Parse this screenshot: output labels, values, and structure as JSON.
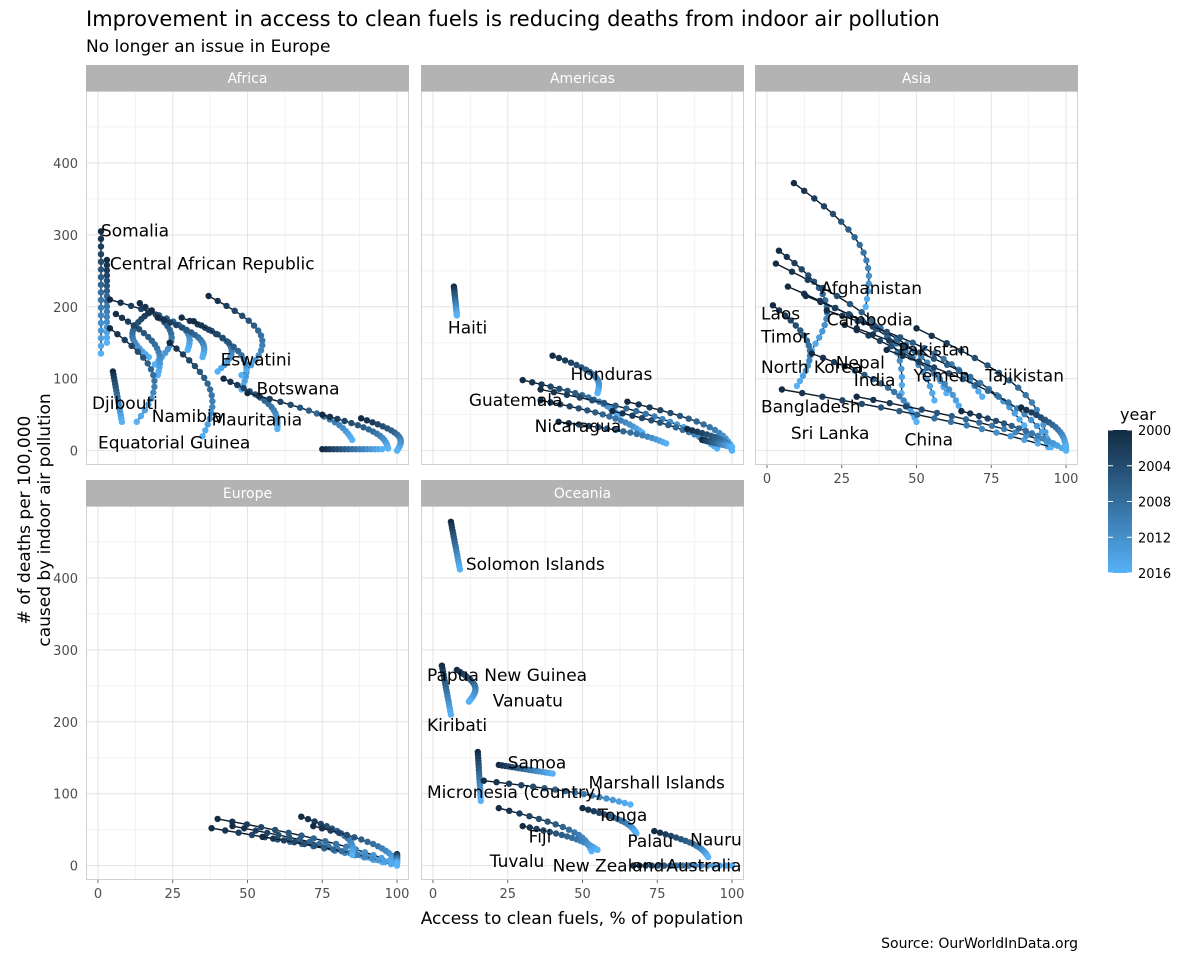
{
  "chart_data": {
    "type": "scatter",
    "title": "Improvement in access to clean fuels is reducing deaths from indoor air pollution",
    "subtitle": "No longer an issue in Europe",
    "xlabel": "Access to clean fuels, % of population",
    "ylabel_line1": "# of deaths per 100,000",
    "ylabel_line2": "caused by indoor air pollution",
    "caption": "Source: OurWorldInData.org",
    "xlim": [
      -4,
      104
    ],
    "ylim": [
      -20,
      500
    ],
    "x_ticks": [
      0,
      25,
      50,
      75,
      100
    ],
    "y_ticks": [
      0,
      100,
      200,
      300,
      400
    ],
    "grid": true,
    "legend": {
      "title": "year",
      "position": "right",
      "labels": [
        "2000",
        "2004",
        "2008",
        "2012",
        "2016"
      ],
      "color_start": "#132B43",
      "color_end": "#56B1F7"
    },
    "year_range": [
      2000,
      2016
    ],
    "facets": [
      {
        "name": "Africa",
        "trajectories": [
          {
            "start": [
              1,
              305
            ],
            "end": [
              1,
              135
            ],
            "bend": 0
          },
          {
            "start": [
              3,
              265
            ],
            "end": [
              3,
              150
            ],
            "bend": 0
          },
          {
            "start": [
              4,
              210
            ],
            "end": [
              30,
              140
            ],
            "bend": 10
          },
          {
            "start": [
              14,
              205
            ],
            "end": [
              19,
              120
            ],
            "bend": 8
          },
          {
            "start": [
              18,
              195
            ],
            "end": [
              17,
              130
            ],
            "bend": -6
          },
          {
            "start": [
              20,
              185
            ],
            "end": [
              35,
              130
            ],
            "bend": 6
          },
          {
            "start": [
              28,
              185
            ],
            "end": [
              40,
              110
            ],
            "bend": 10
          },
          {
            "start": [
              32,
              180
            ],
            "end": [
              48,
              85
            ],
            "bend": 8
          },
          {
            "start": [
              37,
              215
            ],
            "end": [
              48,
              105
            ],
            "bend": 12
          },
          {
            "start": [
              6,
              190
            ],
            "end": [
              20,
              105
            ],
            "bend": 6
          },
          {
            "start": [
              4,
              170
            ],
            "end": [
              13,
              40
            ],
            "bend": 10
          },
          {
            "start": [
              5,
              110
            ],
            "end": [
              8,
              40
            ],
            "bend": 0
          },
          {
            "start": [
              24,
              150
            ],
            "end": [
              35,
              20
            ],
            "bend": 8
          },
          {
            "start": [
              42,
              100
            ],
            "end": [
              60,
              30
            ],
            "bend": 6
          },
          {
            "start": [
              50,
              80
            ],
            "end": [
              85,
              15
            ],
            "bend": 8
          },
          {
            "start": [
              75,
              50
            ],
            "end": [
              97,
              3
            ],
            "bend": 6
          },
          {
            "start": [
              88,
              45
            ],
            "end": [
              100,
              0
            ],
            "bend": 6
          },
          {
            "start": [
              75,
              2
            ],
            "end": [
              95,
              2
            ],
            "bend": 0
          }
        ],
        "labels": [
          {
            "text": "Somalia",
            "x": 1,
            "y": 298
          },
          {
            "text": "Central African Republic",
            "x": 4,
            "y": 252
          },
          {
            "text": "Eswatini",
            "x": 41,
            "y": 118
          },
          {
            "text": "Botswana",
            "x": 53,
            "y": 78
          },
          {
            "text": "Djibouti",
            "x": -2,
            "y": 58
          },
          {
            "text": "Namibia",
            "x": 18,
            "y": 40
          },
          {
            "text": "Mauritania",
            "x": 38,
            "y": 35
          },
          {
            "text": "Equatorial Guinea",
            "x": 0,
            "y": 3
          }
        ]
      },
      {
        "name": "Americas",
        "trajectories": [
          {
            "start": [
              7,
              228
            ],
            "end": [
              8,
              188
            ],
            "bend": 0
          },
          {
            "start": [
              40,
              132
            ],
            "end": [
              55,
              80
            ],
            "bend": 6
          },
          {
            "start": [
              30,
              98
            ],
            "end": [
              62,
              50
            ],
            "bend": 6
          },
          {
            "start": [
              36,
              85
            ],
            "end": [
              88,
              25
            ],
            "bend": 6
          },
          {
            "start": [
              36,
              70
            ],
            "end": [
              70,
              25
            ],
            "bend": 6
          },
          {
            "start": [
              42,
              40
            ],
            "end": [
              78,
              10
            ],
            "bend": 6
          },
          {
            "start": [
              65,
              68
            ],
            "end": [
              100,
              5
            ],
            "bend": 8
          },
          {
            "start": [
              60,
              55
            ],
            "end": [
              95,
              3
            ],
            "bend": 6
          },
          {
            "start": [
              85,
              30
            ],
            "end": [
              100,
              0
            ],
            "bend": 4
          },
          {
            "start": [
              90,
              15
            ],
            "end": [
              100,
              5
            ],
            "bend": 0
          }
        ],
        "labels": [
          {
            "text": "Haiti",
            "x": 5,
            "y": 163
          },
          {
            "text": "Honduras",
            "x": 46,
            "y": 98
          },
          {
            "text": "Guatemala",
            "x": 12,
            "y": 62
          },
          {
            "text": "Nicaragua",
            "x": 34,
            "y": 26
          }
        ]
      },
      {
        "name": "Asia",
        "trajectories": [
          {
            "start": [
              9,
              372
            ],
            "end": [
              33,
              200
            ],
            "bend": 10
          },
          {
            "start": [
              4,
              278
            ],
            "end": [
              15,
              140
            ],
            "bend": 10
          },
          {
            "start": [
              2,
              202
            ],
            "end": [
              10,
              90
            ],
            "bend": 8
          },
          {
            "start": [
              3,
              260
            ],
            "end": [
              45,
              80
            ],
            "bend": 14
          },
          {
            "start": [
              7,
              228
            ],
            "end": [
              56,
              70
            ],
            "bend": 12
          },
          {
            "start": [
              13,
              215
            ],
            "end": [
              60,
              80
            ],
            "bend": 10
          },
          {
            "start": [
              20,
              195
            ],
            "end": [
              72,
              75
            ],
            "bend": 10
          },
          {
            "start": [
              26,
              175
            ],
            "end": [
              65,
              55
            ],
            "bend": 8
          },
          {
            "start": [
              30,
              170
            ],
            "end": [
              86,
              35
            ],
            "bend": 10
          },
          {
            "start": [
              50,
              170
            ],
            "end": [
              94,
              5
            ],
            "bend": 12
          },
          {
            "start": [
              40,
              140
            ],
            "end": [
              95,
              10
            ],
            "bend": 10
          },
          {
            "start": [
              15,
              135
            ],
            "end": [
              50,
              40
            ],
            "bend": 8
          },
          {
            "start": [
              5,
              85
            ],
            "end": [
              95,
              5
            ],
            "bend": 6
          },
          {
            "start": [
              30,
              75
            ],
            "end": [
              100,
              3
            ],
            "bend": 6
          },
          {
            "start": [
              65,
              55
            ],
            "end": [
              100,
              0
            ],
            "bend": 4
          },
          {
            "start": [
              85,
              60
            ],
            "end": [
              100,
              5
            ],
            "bend": 4
          }
        ],
        "labels": [
          {
            "text": "Afghanistan",
            "x": 18,
            "y": 218
          },
          {
            "text": "Laos",
            "x": -2,
            "y": 182
          },
          {
            "text": "Cambodia",
            "x": 20,
            "y": 174
          },
          {
            "text": "Timor",
            "x": -2,
            "y": 150
          },
          {
            "text": "Pakistan",
            "x": 44,
            "y": 132
          },
          {
            "text": "Nepal",
            "x": 23,
            "y": 114
          },
          {
            "text": "North Korea",
            "x": -2,
            "y": 108
          },
          {
            "text": "Yemen",
            "x": 49,
            "y": 96
          },
          {
            "text": "Tajikistan",
            "x": 73,
            "y": 96
          },
          {
            "text": "India",
            "x": 29,
            "y": 90
          },
          {
            "text": "Bangladesh",
            "x": -2,
            "y": 53
          },
          {
            "text": "Sri Lanka",
            "x": 8,
            "y": 16
          },
          {
            "text": "China",
            "x": 46,
            "y": 7
          }
        ]
      },
      {
        "name": "Europe",
        "trajectories": [
          {
            "start": [
              40,
              65
            ],
            "end": [
              100,
              3
            ],
            "bend": 6
          },
          {
            "start": [
              38,
              52
            ],
            "end": [
              98,
              2
            ],
            "bend": 4
          },
          {
            "start": [
              45,
              55
            ],
            "end": [
              95,
              5
            ],
            "bend": 4
          },
          {
            "start": [
              55,
              40
            ],
            "end": [
              100,
              0
            ],
            "bend": 4
          },
          {
            "start": [
              68,
              68
            ],
            "end": [
              85,
              15
            ],
            "bend": 6
          },
          {
            "start": [
              72,
              55
            ],
            "end": [
              100,
              5
            ],
            "bend": 6
          },
          {
            "start": [
              100,
              16
            ],
            "end": [
              100,
              3
            ],
            "bend": 0
          }
        ],
        "labels": []
      },
      {
        "name": "Oceania",
        "trajectories": [
          {
            "start": [
              6,
              478
            ],
            "end": [
              9,
              412
            ],
            "bend": 0
          },
          {
            "start": [
              3,
              278
            ],
            "end": [
              6,
              210
            ],
            "bend": 0
          },
          {
            "start": [
              8,
              272
            ],
            "end": [
              12,
              228
            ],
            "bend": 4
          },
          {
            "start": [
              15,
              158
            ],
            "end": [
              16,
              90
            ],
            "bend": 0
          },
          {
            "start": [
              22,
              140
            ],
            "end": [
              40,
              128
            ],
            "bend": 0
          },
          {
            "start": [
              17,
              118
            ],
            "end": [
              66,
              85
            ],
            "bend": 6
          },
          {
            "start": [
              22,
              80
            ],
            "end": [
              53,
              20
            ],
            "bend": 8
          },
          {
            "start": [
              30,
              55
            ],
            "end": [
              55,
              22
            ],
            "bend": 4
          },
          {
            "start": [
              50,
              80
            ],
            "end": [
              68,
              45
            ],
            "bend": 4
          },
          {
            "start": [
              74,
              48
            ],
            "end": [
              92,
              12
            ],
            "bend": 4
          },
          {
            "start": [
              67,
              0
            ],
            "end": [
              100,
              0
            ],
            "bend": 0
          }
        ],
        "labels": [
          {
            "text": "Solomon Islands",
            "x": 11,
            "y": 411
          },
          {
            "text": "Papua New Guinea",
            "x": -2,
            "y": 257
          },
          {
            "text": "Vanuatu",
            "x": 20,
            "y": 221
          },
          {
            "text": "Kiribati",
            "x": -2,
            "y": 187
          },
          {
            "text": "Samoa",
            "x": 25,
            "y": 135
          },
          {
            "text": "Marshall Islands",
            "x": 52,
            "y": 107
          },
          {
            "text": "Micronesia (country)",
            "x": -2,
            "y": 94
          },
          {
            "text": "Tonga",
            "x": 55,
            "y": 62
          },
          {
            "text": "Fiji",
            "x": 32,
            "y": 32
          },
          {
            "text": "Palau",
            "x": 65,
            "y": 26
          },
          {
            "text": "Nauru",
            "x": 86,
            "y": 28
          },
          {
            "text": "Tuvalu",
            "x": 19,
            "y": -2
          },
          {
            "text": "New Zealand",
            "x": 40,
            "y": -8
          },
          {
            "text": "Australia",
            "x": 78,
            "y": -8
          }
        ]
      }
    ]
  }
}
